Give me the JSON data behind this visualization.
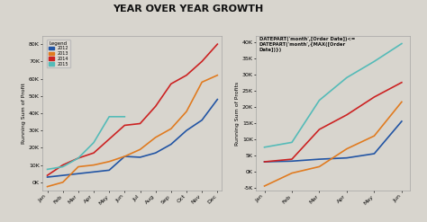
{
  "title": "YEAR OVER YEAR GROWTH",
  "title_fontsize": 8,
  "background_color": "#d8d5ce",
  "plot_bg_color": "#d8d5ce",
  "years": [
    "2012",
    "2013",
    "2014",
    "2015"
  ],
  "colors": [
    "#2255a4",
    "#e07b20",
    "#cc2222",
    "#55bbb8"
  ],
  "left_chart": {
    "months": [
      "Jan",
      "Feb",
      "Mar",
      "Apr",
      "May",
      "Jun",
      "Jul",
      "Aug",
      "Sep",
      "Oct",
      "Nov",
      "Dec"
    ],
    "ylabel": "Running Sum of Profit",
    "ylim": [
      -5000,
      85000
    ],
    "yticks": [
      0,
      10000,
      20000,
      30000,
      40000,
      50000,
      60000,
      70000,
      80000
    ],
    "ytick_labels": [
      "0K",
      "10K",
      "20K",
      "30K",
      "40K",
      "50K",
      "60K",
      "70K",
      "80K"
    ],
    "series": {
      "2012": [
        3000,
        4000,
        5000,
        6000,
        7000,
        15000,
        14500,
        17000,
        22000,
        30000,
        36000,
        48000
      ],
      "2013": [
        -2500,
        0,
        9000,
        10000,
        12000,
        15000,
        19000,
        26000,
        31000,
        41000,
        58000,
        62000
      ],
      "2014": [
        4000,
        10000,
        14000,
        17000,
        25000,
        33000,
        34000,
        44000,
        57000,
        62000,
        70000,
        80000
      ],
      "2015": [
        7500,
        9000,
        14000,
        23000,
        38000,
        38000,
        null,
        null,
        null,
        null,
        null,
        null
      ]
    }
  },
  "right_chart": {
    "months": [
      "Jan",
      "Feb",
      "Mar",
      "Apr",
      "May",
      "Jun"
    ],
    "ylabel": "Running Sum of Profits",
    "ylim": [
      -6000,
      42000
    ],
    "yticks": [
      -5000,
      0,
      5000,
      10000,
      15000,
      20000,
      25000,
      30000,
      35000,
      40000
    ],
    "ytick_labels": [
      "-5K",
      "0K",
      "5K",
      "10K",
      "15K",
      "20K",
      "25K",
      "30K",
      "35K",
      "40K"
    ],
    "annotation_line1": "DATEPART('month',[Order Date])<=",
    "annotation_line2": "DATEPART('month',{MAX([Order",
    "annotation_line3": "Date])})",
    "series": {
      "2012": [
        3000,
        3200,
        3800,
        4200,
        5500,
        15500
      ],
      "2013": [
        -4500,
        -500,
        1500,
        7000,
        11000,
        21500
      ],
      "2014": [
        3000,
        3800,
        13000,
        17500,
        23000,
        27500
      ],
      "2015": [
        7500,
        9000,
        22000,
        29000,
        34000,
        39500
      ]
    }
  }
}
